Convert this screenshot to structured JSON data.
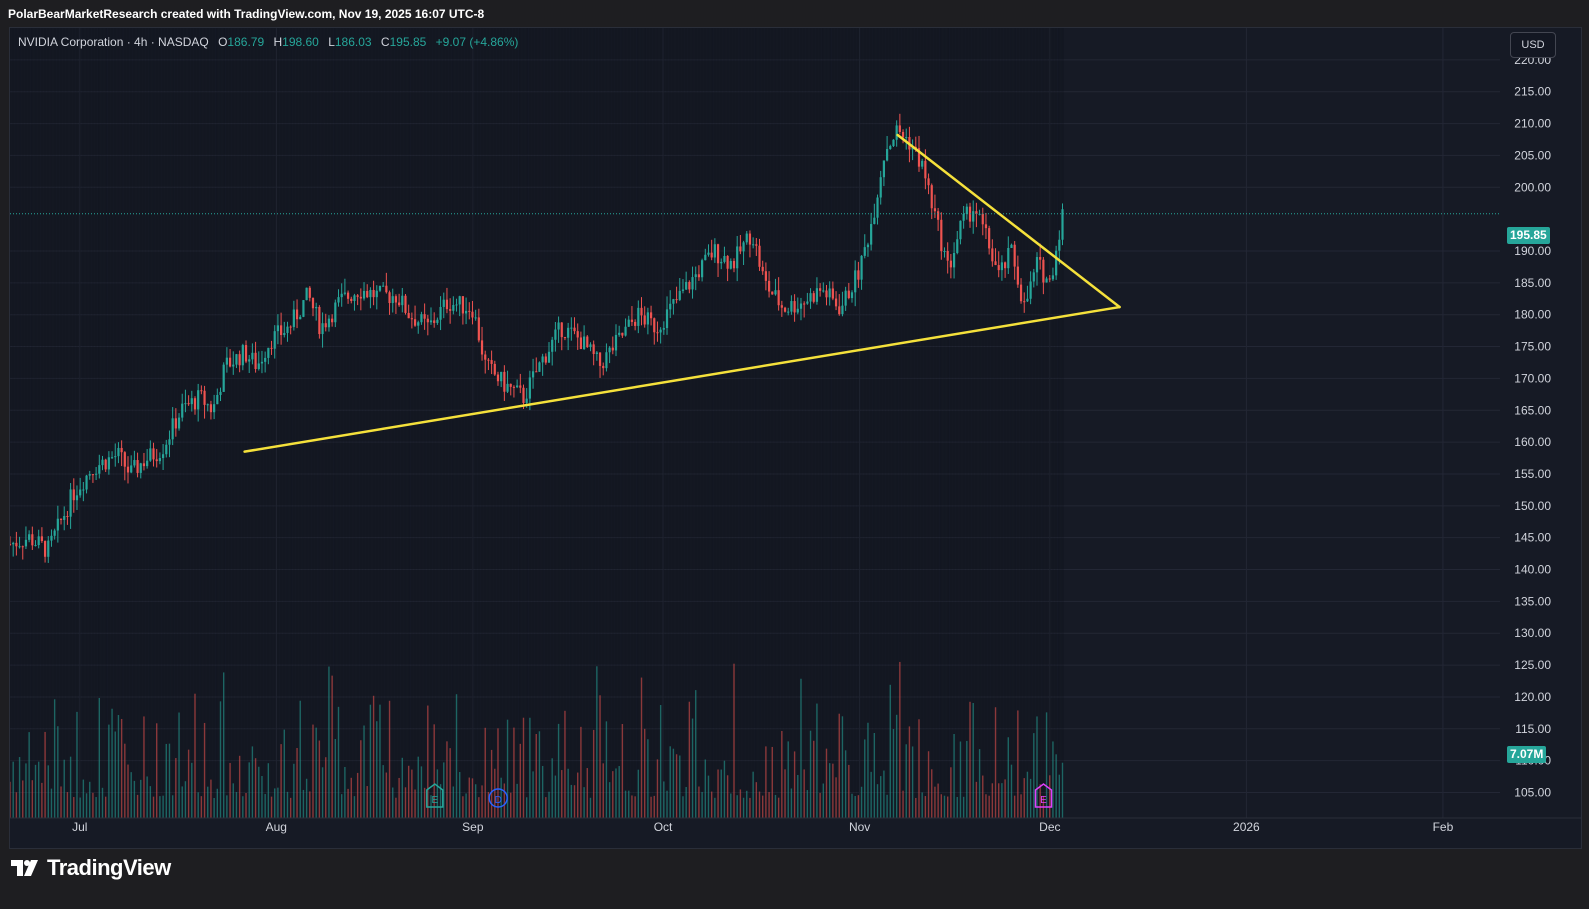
{
  "header": {
    "credit": "PolarBearMarketResearch created with TradingView.com, Nov 19, 2025 16:07 UTC-8"
  },
  "legend": {
    "symbol": "NVIDIA Corporation · 4h · NASDAQ",
    "open_label": "O",
    "open": "186.79",
    "high_label": "H",
    "high": "198.60",
    "low_label": "L",
    "low": "186.03",
    "close_label": "C",
    "close": "195.85",
    "change": "+9.07 (+4.86%)"
  },
  "currency": "USD",
  "brand": {
    "name": "TradingView",
    "icon": "tradingview-logo-icon"
  },
  "colors": {
    "up": "#26a69a",
    "down": "#ef5350",
    "trendline": "#f5e13b",
    "background": "#161a25",
    "grid": "#232735",
    "price_tag": "#26a69a"
  },
  "chart_data": {
    "type": "candlestick",
    "symbol": "NVDA",
    "timeframe": "4h",
    "xlim": [
      "2025-06-20",
      "2026-02-10"
    ],
    "ylim": [
      101,
      225
    ],
    "x_ticks": [
      {
        "date": "2025-07-01",
        "label": "Jul"
      },
      {
        "date": "2025-08-01",
        "label": "Aug"
      },
      {
        "date": "2025-09-01",
        "label": "Sep"
      },
      {
        "date": "2025-10-01",
        "label": "Oct"
      },
      {
        "date": "2025-11-01",
        "label": "Nov"
      },
      {
        "date": "2025-12-01",
        "label": "Dec"
      },
      {
        "date": "2026-01-01",
        "label": "2026"
      },
      {
        "date": "2026-02-01",
        "label": "Feb"
      }
    ],
    "y_ticks": [
      "220.00",
      "215.00",
      "210.00",
      "205.00",
      "200.00",
      "190.00",
      "185.00",
      "180.00",
      "175.00",
      "170.00",
      "165.00",
      "160.00",
      "155.00",
      "150.00",
      "145.00",
      "140.00",
      "135.00",
      "130.00",
      "125.00",
      "120.00",
      "115.00",
      "110.00",
      "105.00"
    ],
    "last_price": "195.85",
    "last_price_value": 195.85,
    "volume_label": "7.07M",
    "price_path": [
      [
        "2025-06-20",
        144
      ],
      [
        "2025-06-23",
        145
      ],
      [
        "2025-06-26",
        143
      ],
      [
        "2025-06-30",
        152
      ],
      [
        "2025-07-03",
        156
      ],
      [
        "2025-07-07",
        158
      ],
      [
        "2025-07-09",
        155
      ],
      [
        "2025-07-11",
        157
      ],
      [
        "2025-07-14",
        159
      ],
      [
        "2025-07-17",
        165
      ],
      [
        "2025-07-20",
        167
      ],
      [
        "2025-07-22",
        165
      ],
      [
        "2025-07-24",
        172
      ],
      [
        "2025-07-27",
        174
      ],
      [
        "2025-07-29",
        172
      ],
      [
        "2025-07-31",
        176
      ],
      [
        "2025-08-03",
        178
      ],
      [
        "2025-08-06",
        183
      ],
      [
        "2025-08-08",
        178
      ],
      [
        "2025-08-11",
        182
      ],
      [
        "2025-08-14",
        184
      ],
      [
        "2025-08-17",
        183
      ],
      [
        "2025-08-20",
        183
      ],
      [
        "2025-08-22",
        180
      ],
      [
        "2025-08-25",
        178
      ],
      [
        "2025-08-28",
        182
      ],
      [
        "2025-09-01",
        181
      ],
      [
        "2025-09-03",
        172
      ],
      [
        "2025-09-06",
        169
      ],
      [
        "2025-09-09",
        167
      ],
      [
        "2025-09-12",
        173
      ],
      [
        "2025-09-15",
        178
      ],
      [
        "2025-09-18",
        176
      ],
      [
        "2025-09-21",
        172
      ],
      [
        "2025-09-24",
        176
      ],
      [
        "2025-09-27",
        180
      ],
      [
        "2025-09-30",
        178
      ],
      [
        "2025-10-03",
        182
      ],
      [
        "2025-10-06",
        186
      ],
      [
        "2025-10-09",
        190
      ],
      [
        "2025-10-12",
        188
      ],
      [
        "2025-10-15",
        193
      ],
      [
        "2025-10-17",
        185
      ],
      [
        "2025-10-20",
        181
      ],
      [
        "2025-10-23",
        182
      ],
      [
        "2025-10-26",
        184
      ],
      [
        "2025-10-29",
        181
      ],
      [
        "2025-11-01",
        187
      ],
      [
        "2025-11-03",
        195
      ],
      [
        "2025-11-05",
        206
      ],
      [
        "2025-11-07",
        209
      ],
      [
        "2025-11-09",
        207
      ],
      [
        "2025-11-11",
        203
      ],
      [
        "2025-11-13",
        195
      ],
      [
        "2025-11-15",
        187
      ],
      [
        "2025-11-17",
        194
      ],
      [
        "2025-11-19",
        197
      ],
      [
        "2025-11-21",
        192
      ],
      [
        "2025-11-23",
        186
      ],
      [
        "2025-11-25",
        190
      ],
      [
        "2025-11-27",
        181
      ],
      [
        "2025-11-29",
        188
      ],
      [
        "2025-12-01",
        185
      ],
      [
        "2025-12-03",
        195.85
      ]
    ],
    "trendlines": [
      {
        "name": "",
        "from": [
          "2025-07-27",
          158.5
        ],
        "to": [
          "2025-12-12",
          181.2
        ]
      },
      {
        "name": "",
        "from": [
          "2025-11-07",
          208.2
        ],
        "to": [
          "2025-12-12",
          181.2
        ]
      }
    ]
  }
}
